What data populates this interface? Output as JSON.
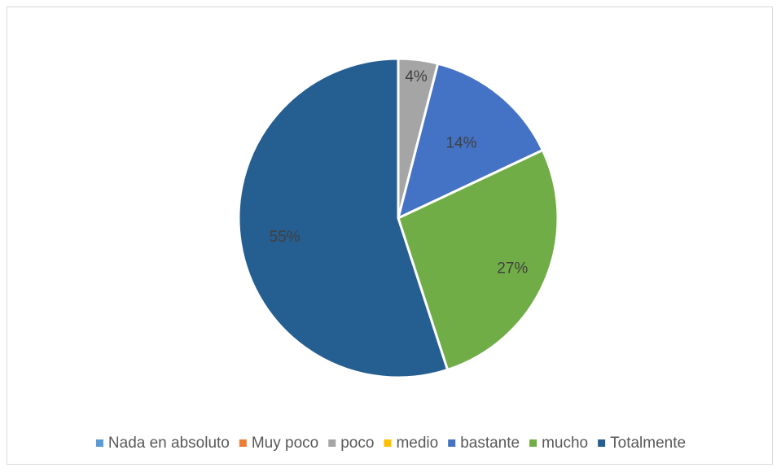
{
  "chart_data": {
    "type": "pie",
    "categories": [
      "Nada en absoluto",
      "Muy poco",
      "poco",
      "medio",
      "bastante",
      "mucho",
      "Totalmente"
    ],
    "values": [
      0,
      0,
      4,
      0,
      14,
      27,
      55
    ],
    "data_labels": [
      "",
      "",
      "4%",
      "",
      "14%",
      "27%",
      "55%"
    ],
    "colors": [
      "#5b9bd5",
      "#ed7d31",
      "#a5a5a5",
      "#ffc000",
      "#4472c4",
      "#70ad47",
      "#255e91"
    ],
    "legend_position": "bottom",
    "title": ""
  }
}
